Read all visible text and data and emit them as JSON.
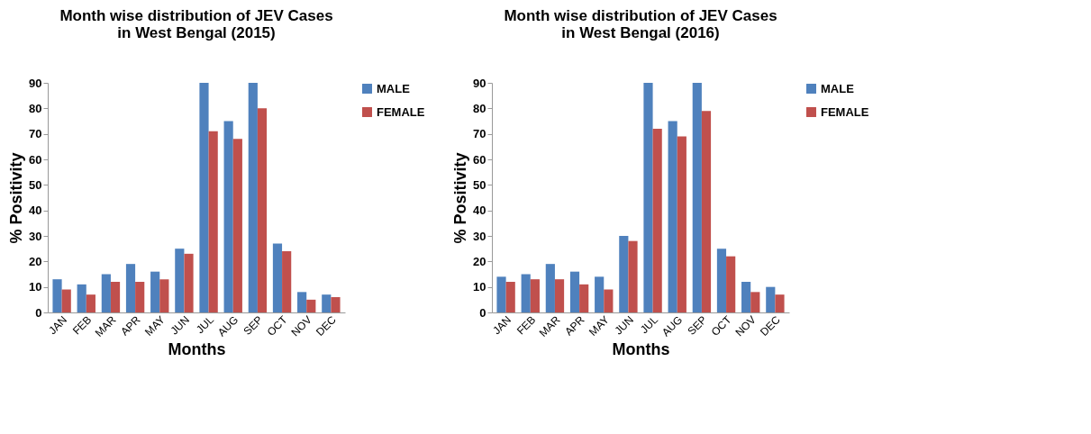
{
  "chart_data": [
    {
      "type": "bar",
      "title": "Month wise distribution of JEV Cases in West Bengal (2015)",
      "xlabel": "Months",
      "ylabel": "% Positivity",
      "categories": [
        "JAN",
        "FEB",
        "MAR",
        "APR",
        "MAY",
        "JUN",
        "JUL",
        "AUG",
        "SEP",
        "OCT",
        "NOV",
        "DEC"
      ],
      "series": [
        {
          "name": "MALE",
          "color": "#4f81bd",
          "values": [
            13,
            11,
            15,
            19,
            16,
            25,
            90,
            75,
            90,
            27,
            8,
            7
          ]
        },
        {
          "name": "FEMALE",
          "color": "#c0504d",
          "values": [
            9,
            7,
            12,
            12,
            13,
            23,
            71,
            68,
            80,
            24,
            5,
            6
          ]
        }
      ],
      "ylim": [
        0,
        90
      ],
      "yticks": [
        0,
        10,
        20,
        30,
        40,
        50,
        60,
        70,
        80,
        90
      ],
      "grid": false,
      "legend": "right"
    },
    {
      "type": "bar",
      "title": "Month wise distribution of JEV Cases in West Bengal (2016)",
      "xlabel": "Months",
      "ylabel": "% Positivity",
      "categories": [
        "JAN",
        "FEB",
        "MAR",
        "APR",
        "MAY",
        "JUN",
        "JUL",
        "AUG",
        "SEP",
        "OCT",
        "NOV",
        "DEC"
      ],
      "series": [
        {
          "name": "MALE",
          "color": "#4f81bd",
          "values": [
            14,
            15,
            19,
            16,
            14,
            30,
            90,
            75,
            90,
            25,
            12,
            10
          ]
        },
        {
          "name": "FEMALE",
          "color": "#c0504d",
          "values": [
            12,
            13,
            13,
            11,
            9,
            28,
            72,
            69,
            79,
            22,
            8,
            7
          ]
        }
      ],
      "ylim": [
        0,
        90
      ],
      "yticks": [
        0,
        10,
        20,
        30,
        40,
        50,
        60,
        70,
        80,
        90
      ],
      "grid": false,
      "legend": "right"
    }
  ]
}
